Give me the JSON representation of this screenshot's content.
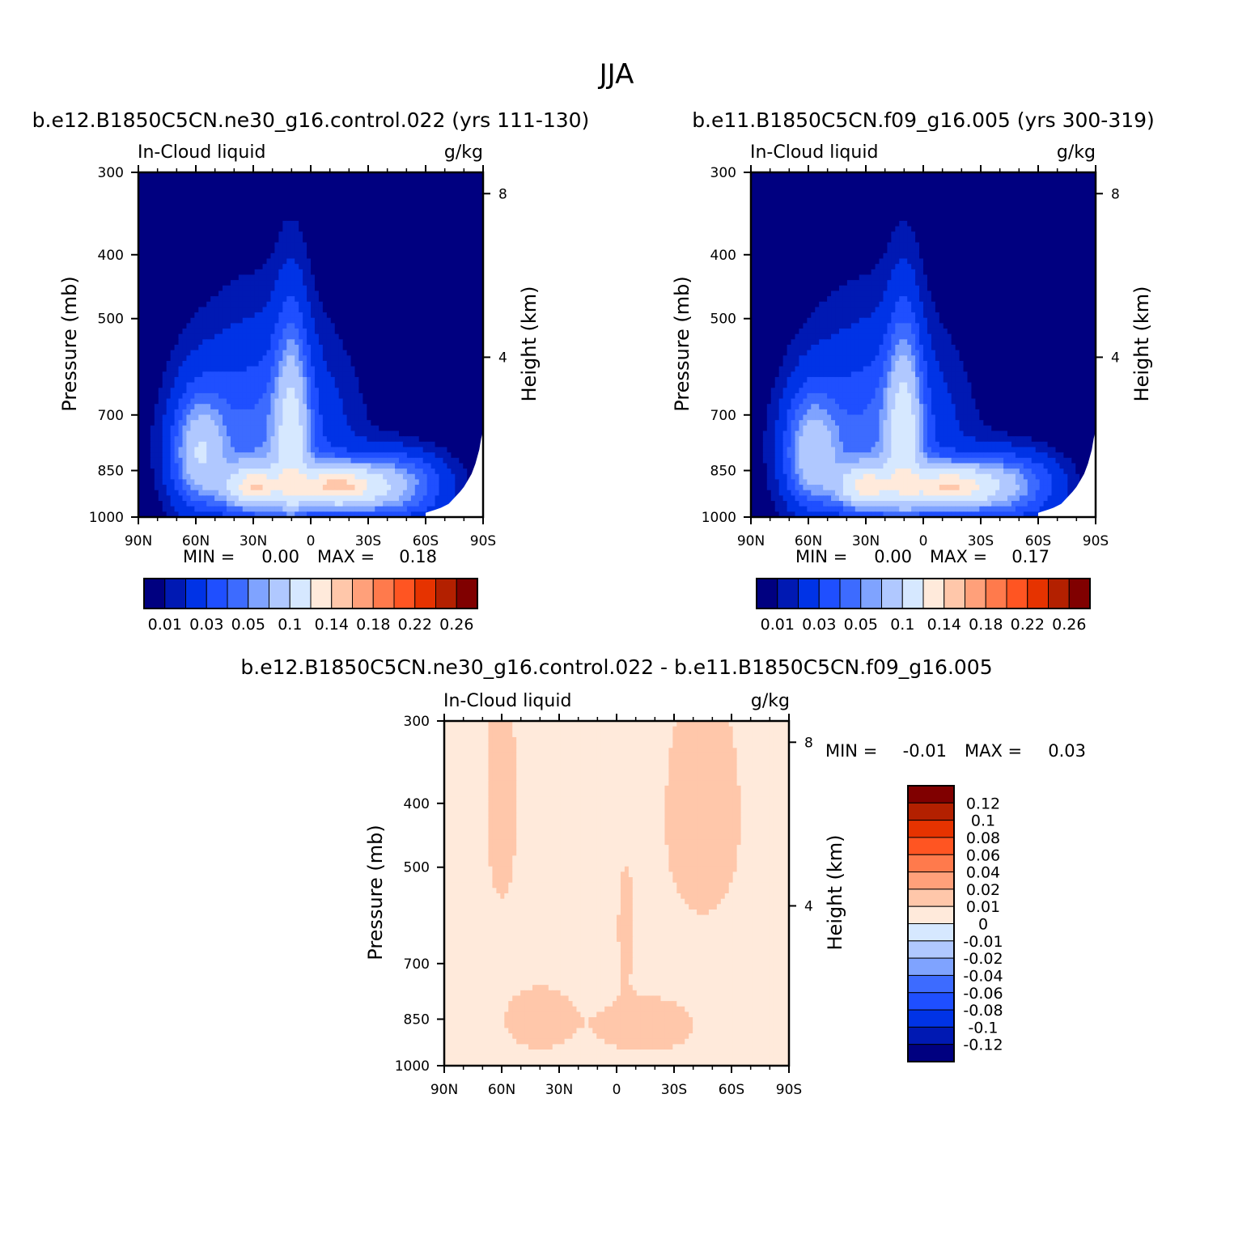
{
  "page_title": "JJA",
  "palette": {
    "seq": [
      "#000080",
      "#0019b3",
      "#0033e6",
      "#1f4fff",
      "#3d6bff",
      "#7fa3ff",
      "#b0c8ff",
      "#d6e8ff",
      "#ffeadb",
      "#ffc7aa",
      "#ffa07a",
      "#ff7a4c",
      "#ff5522",
      "#e63300",
      "#b32000",
      "#800000"
    ],
    "diff": [
      "#000080",
      "#0019b3",
      "#0033e6",
      "#1f4fff",
      "#3d6bff",
      "#7fa3ff",
      "#b0c8ff",
      "#d6e8ff",
      "#ffeadb",
      "#ffc7aa",
      "#ffa07a",
      "#ff7a4c",
      "#ff5522",
      "#e63300",
      "#b32000",
      "#800000"
    ]
  },
  "chart_data": [
    {
      "type": "heatmap",
      "title": "b.e12.B1850C5CN.ne30_g16.control.022 (yrs 111-130)",
      "left_string": "In-Cloud liquid",
      "right_string": "g/kg",
      "ylabel": "Pressure (mb)",
      "y2label": "Height (km)",
      "x_ticks": [
        "90N",
        "60N",
        "30N",
        "0",
        "30S",
        "60S",
        "90S"
      ],
      "y_ticks": [
        "300",
        "400",
        "500",
        "700",
        "850",
        "1000"
      ],
      "y2_ticks": [
        "8",
        "4"
      ],
      "ylim": [
        1000,
        300
      ],
      "min_label": "MIN =",
      "min_value": "0.00",
      "max_label": "MAX =",
      "max_value": "0.18",
      "colorbar_labels": [
        "0.01",
        "0.03",
        "0.05",
        "0.1",
        "0.14",
        "0.18",
        "0.22",
        "0.26"
      ],
      "contour_levels": [
        0.005,
        0.01,
        0.02,
        0.03,
        0.04,
        0.05,
        0.07,
        0.1,
        0.12,
        0.14,
        0.16,
        0.18,
        0.2,
        0.22,
        0.24,
        0.26
      ]
    },
    {
      "type": "heatmap",
      "title": "b.e11.B1850C5CN.f09_g16.005 (yrs 300-319)",
      "left_string": "In-Cloud liquid",
      "right_string": "g/kg",
      "ylabel": "Pressure (mb)",
      "y2label": "Height (km)",
      "x_ticks": [
        "90N",
        "60N",
        "30N",
        "0",
        "30S",
        "60S",
        "90S"
      ],
      "y_ticks": [
        "300",
        "400",
        "500",
        "700",
        "850",
        "1000"
      ],
      "y2_ticks": [
        "8",
        "4"
      ],
      "ylim": [
        1000,
        300
      ],
      "min_label": "MIN =",
      "min_value": "0.00",
      "max_label": "MAX =",
      "max_value": "0.17",
      "colorbar_labels": [
        "0.01",
        "0.03",
        "0.05",
        "0.1",
        "0.14",
        "0.18",
        "0.22",
        "0.26"
      ],
      "contour_levels": [
        0.005,
        0.01,
        0.02,
        0.03,
        0.04,
        0.05,
        0.07,
        0.1,
        0.12,
        0.14,
        0.16,
        0.18,
        0.2,
        0.22,
        0.24,
        0.26
      ]
    },
    {
      "type": "heatmap",
      "title": "b.e12.B1850C5CN.ne30_g16.control.022 - b.e11.B1850C5CN.f09_g16.005",
      "left_string": "In-Cloud liquid",
      "right_string": "g/kg",
      "ylabel": "Pressure (mb)",
      "y2label": "Height (km)",
      "x_ticks": [
        "90N",
        "60N",
        "30N",
        "0",
        "30S",
        "60S",
        "90S"
      ],
      "y_ticks": [
        "300",
        "400",
        "500",
        "700",
        "850",
        "1000"
      ],
      "y2_ticks": [
        "8",
        "4"
      ],
      "ylim": [
        1000,
        300
      ],
      "min_label": "MIN =",
      "min_value": "-0.01",
      "max_label": "MAX =",
      "max_value": "0.03",
      "colorbar_labels": [
        "0.12",
        "0.1",
        "0.08",
        "0.06",
        "0.04",
        "0.02",
        "0.01",
        "0",
        "-0.01",
        "-0.02",
        "-0.04",
        "-0.06",
        "-0.08",
        "-0.1",
        "-0.12"
      ],
      "contour_levels": [
        -0.14,
        -0.12,
        -0.1,
        -0.08,
        -0.06,
        -0.04,
        -0.02,
        -0.01,
        0,
        0.01,
        0.02,
        0.04,
        0.06,
        0.08,
        0.1,
        0.12
      ]
    }
  ]
}
